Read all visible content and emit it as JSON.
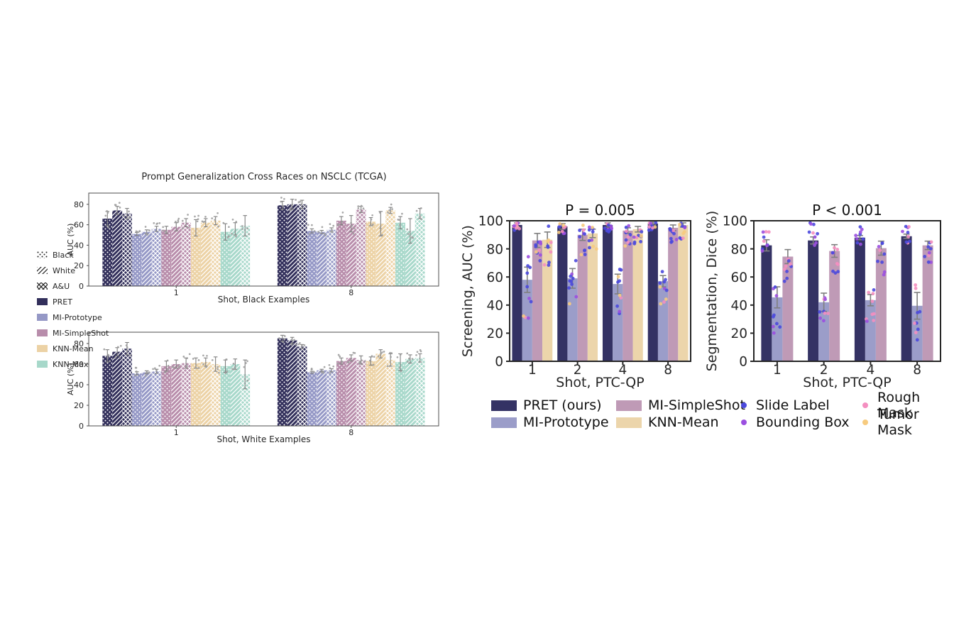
{
  "left_figure": {
    "title": "Prompt Generalization Cross Races on NSCLC (TCGA)",
    "legend": {
      "hatches": [
        {
          "label": "Black",
          "hatch": "dots"
        },
        {
          "label": "White",
          "hatch": "diagonal"
        },
        {
          "label": "A&U",
          "hatch": "cross"
        }
      ],
      "methods": [
        {
          "label": "PRET",
          "color": "#322f5b"
        },
        {
          "label": "MI-Prototype",
          "color": "#9598c6"
        },
        {
          "label": "MI-SimpleShot",
          "color": "#b88dab"
        },
        {
          "label": "KNN-Mean",
          "color": "#ecd2a5"
        },
        {
          "label": "KNN-Max",
          "color": "#a7d8ca"
        }
      ]
    }
  },
  "right_figure": {
    "legend": {
      "methods": [
        {
          "label": "PRET (ours)",
          "color": "#343264"
        },
        {
          "label": "MI-Prototype",
          "color": "#9b9dc9"
        },
        {
          "label": "MI-SimpleShot",
          "color": "#bf9ab6"
        },
        {
          "label": "KNN-Mean",
          "color": "#ecd5ab"
        }
      ],
      "annotations": [
        {
          "label": "Slide Label",
          "color": "#4b49dd"
        },
        {
          "label": "Bounding Box",
          "color": "#9b4fe0"
        },
        {
          "label": "Rough Mask",
          "color": "#f48fc0"
        },
        {
          "label": "Tumor Mask",
          "color": "#f7cb7f"
        }
      ]
    }
  },
  "chart_data": [
    {
      "id": "race-black",
      "type": "bar",
      "xlabel": "Shot, Black Examples",
      "ylabel": "AUC (%)",
      "ylim": [
        0,
        91
      ],
      "yticks": [
        0,
        20,
        40,
        60,
        80
      ],
      "categories": [
        "1",
        "8"
      ],
      "hatch_categories": [
        "Black",
        "White",
        "A&U"
      ],
      "series": [
        {
          "name": "PRET",
          "color": "#322f5b",
          "values": [
            [
              66,
              74,
              71
            ],
            [
              79,
              80,
              80
            ]
          ],
          "errors": [
            [
              7,
              4,
              5
            ],
            [
              4,
              5,
              4
            ]
          ]
        },
        {
          "name": "MI-Prototype",
          "color": "#9598c6",
          "values": [
            [
              51,
              53,
              56
            ],
            [
              54,
              53,
              55
            ]
          ],
          "errors": [
            [
              1.5,
              2,
              2.5
            ],
            [
              2,
              1.5,
              2
            ]
          ]
        },
        {
          "name": "MI-SimpleShot",
          "color": "#b88dab",
          "values": [
            [
              55,
              58,
              62
            ],
            [
              64,
              61,
              75
            ]
          ],
          "errors": [
            [
              3.5,
              4,
              4
            ],
            [
              4,
              8,
              3
            ]
          ]
        },
        {
          "name": "KNN-Mean",
          "color": "#ecd2a5",
          "values": [
            [
              57,
              62,
              64
            ],
            [
              63,
              61,
              74
            ]
          ],
          "errors": [
            [
              8,
              4,
              4
            ],
            [
              4,
              12,
              3
            ]
          ]
        },
        {
          "name": "KNN-Max",
          "color": "#a7d8ca",
          "values": [
            [
              53,
              56,
              59
            ],
            [
              62,
              54,
              71
            ]
          ],
          "errors": [
            [
              8,
              6,
              10
            ],
            [
              6,
              12,
              5
            ]
          ]
        }
      ]
    },
    {
      "id": "race-white",
      "type": "bar",
      "xlabel": "Shot, White Examples",
      "ylabel": "AUC (%)",
      "ylim": [
        0,
        91
      ],
      "yticks": [
        0,
        20,
        40,
        60,
        80
      ],
      "categories": [
        "1",
        "8"
      ],
      "hatch_categories": [
        "Black",
        "White",
        "A&U"
      ],
      "series": [
        {
          "name": "PRET",
          "color": "#322f5b",
          "values": [
            [
              68,
              72,
              75
            ],
            [
              85,
              83,
              77
            ]
          ],
          "errors": [
            [
              6,
              4,
              6
            ],
            [
              3,
              3,
              2
            ]
          ]
        },
        {
          "name": "MI-Prototype",
          "color": "#9598c6",
          "values": [
            [
              51,
              52,
              53
            ],
            [
              52,
              54,
              54
            ]
          ],
          "errors": [
            [
              1.5,
              1.5,
              2
            ],
            [
              1,
              1,
              1.5
            ]
          ]
        },
        {
          "name": "MI-SimpleShot",
          "color": "#b88dab",
          "values": [
            [
              58,
              60,
              61
            ],
            [
              63,
              66,
              64
            ]
          ],
          "errors": [
            [
              5,
              4,
              5
            ],
            [
              3,
              3,
              4
            ]
          ]
        },
        {
          "name": "KNN-Mean",
          "color": "#ecd2a5",
          "values": [
            [
              61,
              62,
              60
            ],
            [
              63,
              70,
              64
            ]
          ],
          "errors": [
            [
              5,
              4,
              7
            ],
            [
              4,
              4,
              6
            ]
          ]
        },
        {
          "name": "KNN-Max",
          "color": "#a7d8ca",
          "values": [
            [
              58,
              60,
              50
            ],
            [
              62,
              65,
              66
            ]
          ],
          "errors": [
            [
              6,
              5,
              14
            ],
            [
              8,
              4,
              4
            ]
          ]
        }
      ]
    },
    {
      "id": "screening",
      "type": "bar",
      "title": "P = 0.005",
      "xlabel": "Shot, PTC-QP",
      "ylabel": "Screening, AUC (%)",
      "ylim": [
        0,
        100
      ],
      "yticks": [
        0,
        20,
        40,
        60,
        80,
        100
      ],
      "categories": [
        "1",
        "2",
        "4",
        "8"
      ],
      "series": [
        {
          "name": "PRET (ours)",
          "color": "#343264",
          "values": [
            97,
            96,
            97,
            98
          ],
          "errors": [
            1.5,
            2,
            1.5,
            1
          ]
        },
        {
          "name": "MI-Prototype",
          "color": "#9b9dc9",
          "values": [
            58,
            59,
            55,
            57
          ],
          "errors": [
            9,
            7,
            7,
            4
          ]
        },
        {
          "name": "MI-SimpleShot",
          "color": "#bf9ab6",
          "values": [
            86,
            90,
            93,
            95
          ],
          "errors": [
            5,
            4,
            2,
            2
          ]
        },
        {
          "name": "KNN-Mean",
          "color": "#ecd5ab",
          "values": [
            86.5,
            91,
            94,
            97
          ],
          "errors": [
            5.5,
            3,
            2,
            1.5
          ]
        }
      ],
      "scatter_overlay": true
    },
    {
      "id": "segmentation",
      "type": "bar",
      "title": "P < 0.001",
      "xlabel": "Shot, PTC-QP",
      "ylabel": "Segmentation, Dice (%)",
      "ylim": [
        0,
        100
      ],
      "yticks": [
        0,
        20,
        40,
        60,
        80,
        100
      ],
      "categories": [
        "1",
        "2",
        "4",
        "8"
      ],
      "series": [
        {
          "name": "PRET (ours)",
          "color": "#343264",
          "values": [
            82.5,
            86,
            88,
            89
          ],
          "errors": [
            4,
            2.5,
            1.5,
            1.5
          ]
        },
        {
          "name": "MI-Prototype",
          "color": "#9b9dc9",
          "values": [
            45.5,
            42,
            43.5,
            39.5
          ],
          "errors": [
            7.5,
            6.5,
            4,
            9.5
          ]
        },
        {
          "name": "MI-SimpleShot",
          "color": "#bf9ab6",
          "values": [
            74.5,
            78.5,
            80.5,
            82.5
          ],
          "errors": [
            5,
            4.5,
            5,
            3
          ]
        }
      ],
      "scatter_overlay": true
    }
  ],
  "colors": {
    "error_bar": "#7f7f7f",
    "left_scatter_dot": "#9e9e9e",
    "spine_left": "#4d4d4d",
    "spine_right": "#262626",
    "text": "#262626"
  }
}
